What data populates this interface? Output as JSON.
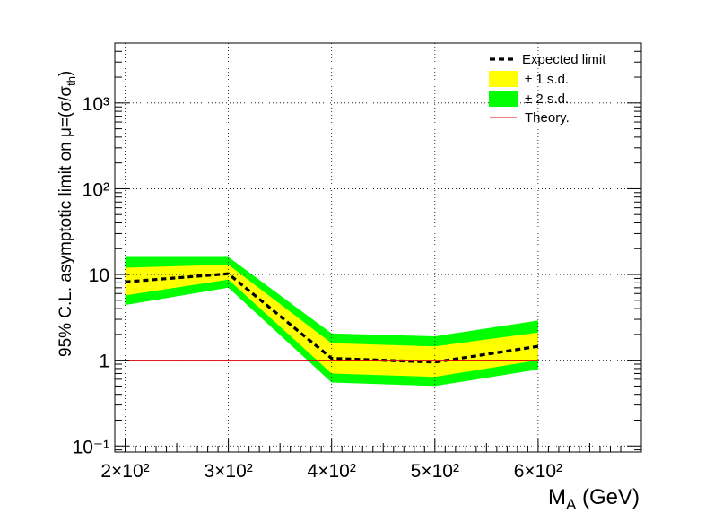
{
  "chart_data": {
    "type": "line",
    "title": "",
    "xlabel": "M_A (GeV)",
    "xlabel_main": "M",
    "xlabel_sub": "A",
    "xlabel_unit": " (GeV)",
    "ylabel": "95% C.L. asymptotic limit on μ=(σ/σ_th)",
    "ylabel_main": "95% C.L. asymptotic limit on μ=(σ/σ",
    "ylabel_sub": "th",
    "ylabel_close": ")",
    "x_scale": "linear",
    "y_scale": "log",
    "xlim": [
      190,
      700
    ],
    "ylim": [
      0.085,
      5000
    ],
    "grid": true,
    "legend_position": "top-right",
    "x": [
      200,
      300,
      400,
      500,
      600
    ],
    "x_ticks": [
      {
        "value": 200,
        "label": "2×10²"
      },
      {
        "value": 300,
        "label": "3×10²"
      },
      {
        "value": 400,
        "label": "4×10²"
      },
      {
        "value": 500,
        "label": "5×10²"
      },
      {
        "value": 600,
        "label": "6×10²"
      }
    ],
    "y_ticks": [
      {
        "value": 0.1,
        "label": "10⁻¹"
      },
      {
        "value": 1,
        "label": "1"
      },
      {
        "value": 10,
        "label": "10"
      },
      {
        "value": 100,
        "label": "10²"
      },
      {
        "value": 1000,
        "label": "10³"
      }
    ],
    "series": [
      {
        "name": "± 2 s.d.",
        "kind": "band",
        "color": "#00ff00",
        "lower": [
          4.4,
          7.0,
          0.55,
          0.5,
          0.78
        ],
        "upper": [
          16.0,
          16.0,
          2.05,
          1.9,
          2.9
        ]
      },
      {
        "name": "± 1 s.d.",
        "kind": "band",
        "color": "#ffff00",
        "lower": [
          5.7,
          8.7,
          0.7,
          0.64,
          1.0
        ],
        "upper": [
          12.0,
          13.0,
          1.58,
          1.45,
          2.1
        ]
      },
      {
        "name": "Expected limit",
        "kind": "line",
        "color": "#000000",
        "dashed": true,
        "values": [
          8.2,
          10.2,
          1.05,
          0.95,
          1.45
        ]
      },
      {
        "name": "Theory.",
        "kind": "line",
        "color": "#e00000",
        "dashed": false,
        "values": [
          1,
          1,
          1,
          1,
          1
        ]
      }
    ]
  }
}
